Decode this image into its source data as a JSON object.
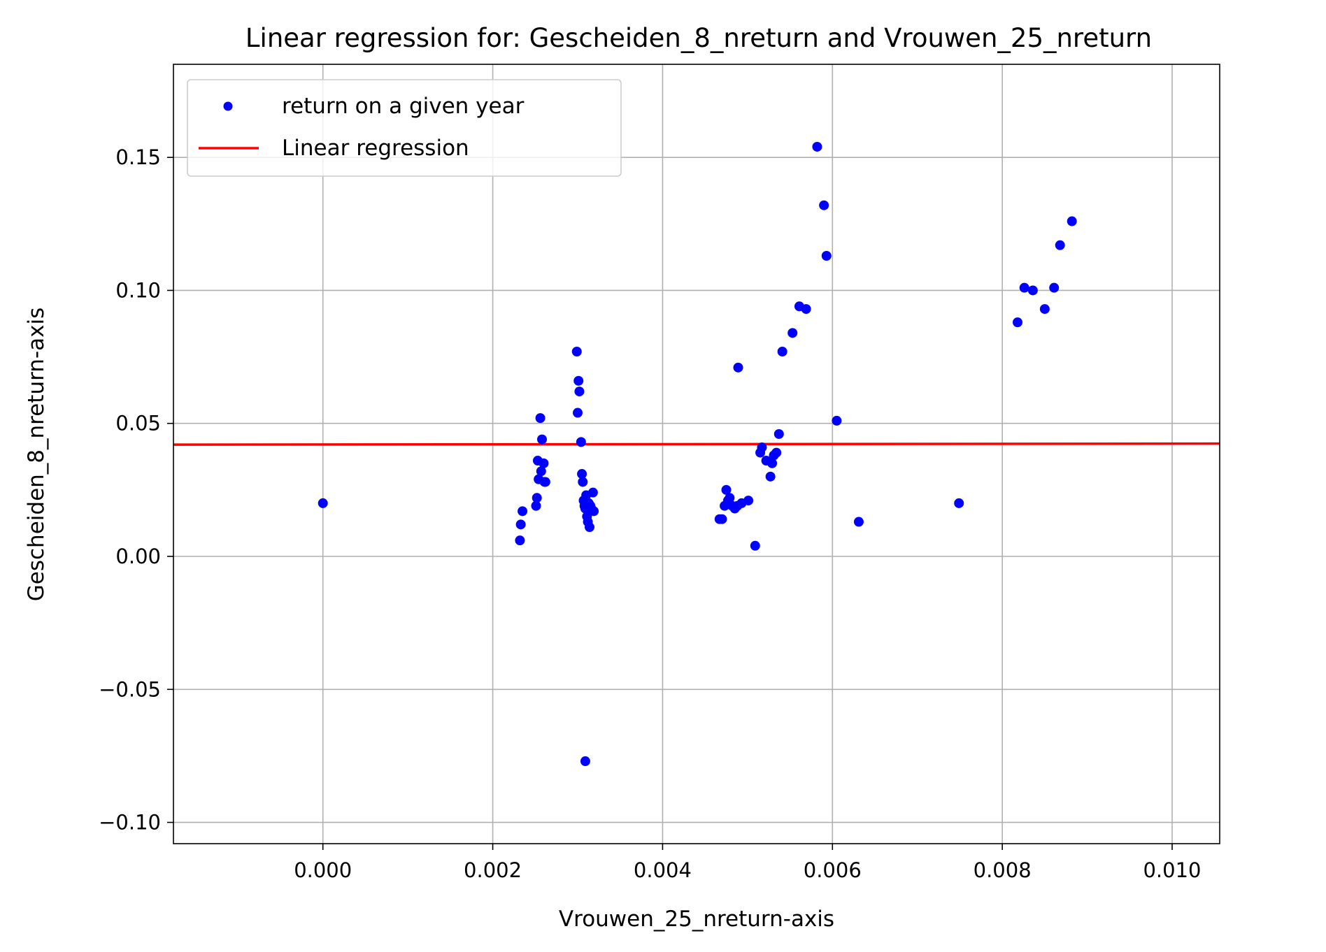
{
  "chart_data": {
    "type": "scatter",
    "title": "Linear regression for: Gescheiden_8_nreturn and Vrouwen_25_nreturn",
    "xlabel": "Vrouwen_25_nreturn-axis",
    "ylabel": "Gescheiden_8_nreturn-axis",
    "xlim": [
      -0.00176,
      0.01056
    ],
    "ylim": [
      -0.108,
      0.185
    ],
    "xticks": [
      0.0,
      0.002,
      0.004,
      0.006,
      0.008,
      0.01
    ],
    "xtick_labels": [
      "0.000",
      "0.002",
      "0.004",
      "0.006",
      "0.008",
      "0.010"
    ],
    "yticks": [
      -0.1,
      -0.05,
      0.0,
      0.05,
      0.1,
      0.15
    ],
    "ytick_labels": [
      "−0.10",
      "−0.05",
      "0.00",
      "0.05",
      "0.10",
      "0.15"
    ],
    "grid": true,
    "legend_position": "top-left",
    "series": [
      {
        "name": "return on a given year",
        "kind": "scatter",
        "color": "#0000ff",
        "x": [
          0.0,
          0.00232,
          0.00233,
          0.00235,
          0.00251,
          0.00252,
          0.00253,
          0.00254,
          0.00256,
          0.00257,
          0.00258,
          0.0026,
          0.00261,
          0.00262,
          0.00299,
          0.003,
          0.00301,
          0.00302,
          0.00304,
          0.00305,
          0.00306,
          0.00307,
          0.00308,
          0.00309,
          0.0031,
          0.00311,
          0.00312,
          0.00313,
          0.00314,
          0.00315,
          0.00316,
          0.00318,
          0.00319,
          0.00309,
          0.00467,
          0.0047,
          0.00473,
          0.00475,
          0.00477,
          0.00479,
          0.00482,
          0.00485,
          0.00488,
          0.00493,
          0.00501,
          0.00509,
          0.00489,
          0.00515,
          0.00517,
          0.00522,
          0.00527,
          0.00529,
          0.00531,
          0.00534,
          0.00537,
          0.00541,
          0.00553,
          0.00561,
          0.00569,
          0.00582,
          0.0059,
          0.00593,
          0.00605,
          0.00631,
          0.00749,
          0.00818,
          0.00826,
          0.00836,
          0.0085,
          0.00861,
          0.00868,
          0.00882
        ],
        "y": [
          0.02,
          0.006,
          0.012,
          0.017,
          0.019,
          0.022,
          0.036,
          0.029,
          0.052,
          0.032,
          0.044,
          0.035,
          0.028,
          0.028,
          0.077,
          0.054,
          0.066,
          0.062,
          0.043,
          0.031,
          0.028,
          0.021,
          0.019,
          0.018,
          0.023,
          0.015,
          0.013,
          0.02,
          0.011,
          0.019,
          0.018,
          0.024,
          0.017,
          -0.077,
          0.014,
          0.014,
          0.019,
          0.025,
          0.021,
          0.022,
          0.019,
          0.018,
          0.019,
          0.02,
          0.021,
          0.004,
          0.071,
          0.039,
          0.041,
          0.036,
          0.03,
          0.035,
          0.038,
          0.039,
          0.046,
          0.077,
          0.084,
          0.094,
          0.093,
          0.154,
          0.132,
          0.113,
          0.051,
          0.013,
          0.02,
          0.088,
          0.101,
          0.1,
          0.093,
          0.101,
          0.117,
          0.126
        ]
      },
      {
        "name": "Linear regression",
        "kind": "line",
        "color": "#ff0000",
        "x": [
          -0.00176,
          0.01056
        ],
        "y": [
          0.042,
          0.0424
        ]
      }
    ]
  }
}
